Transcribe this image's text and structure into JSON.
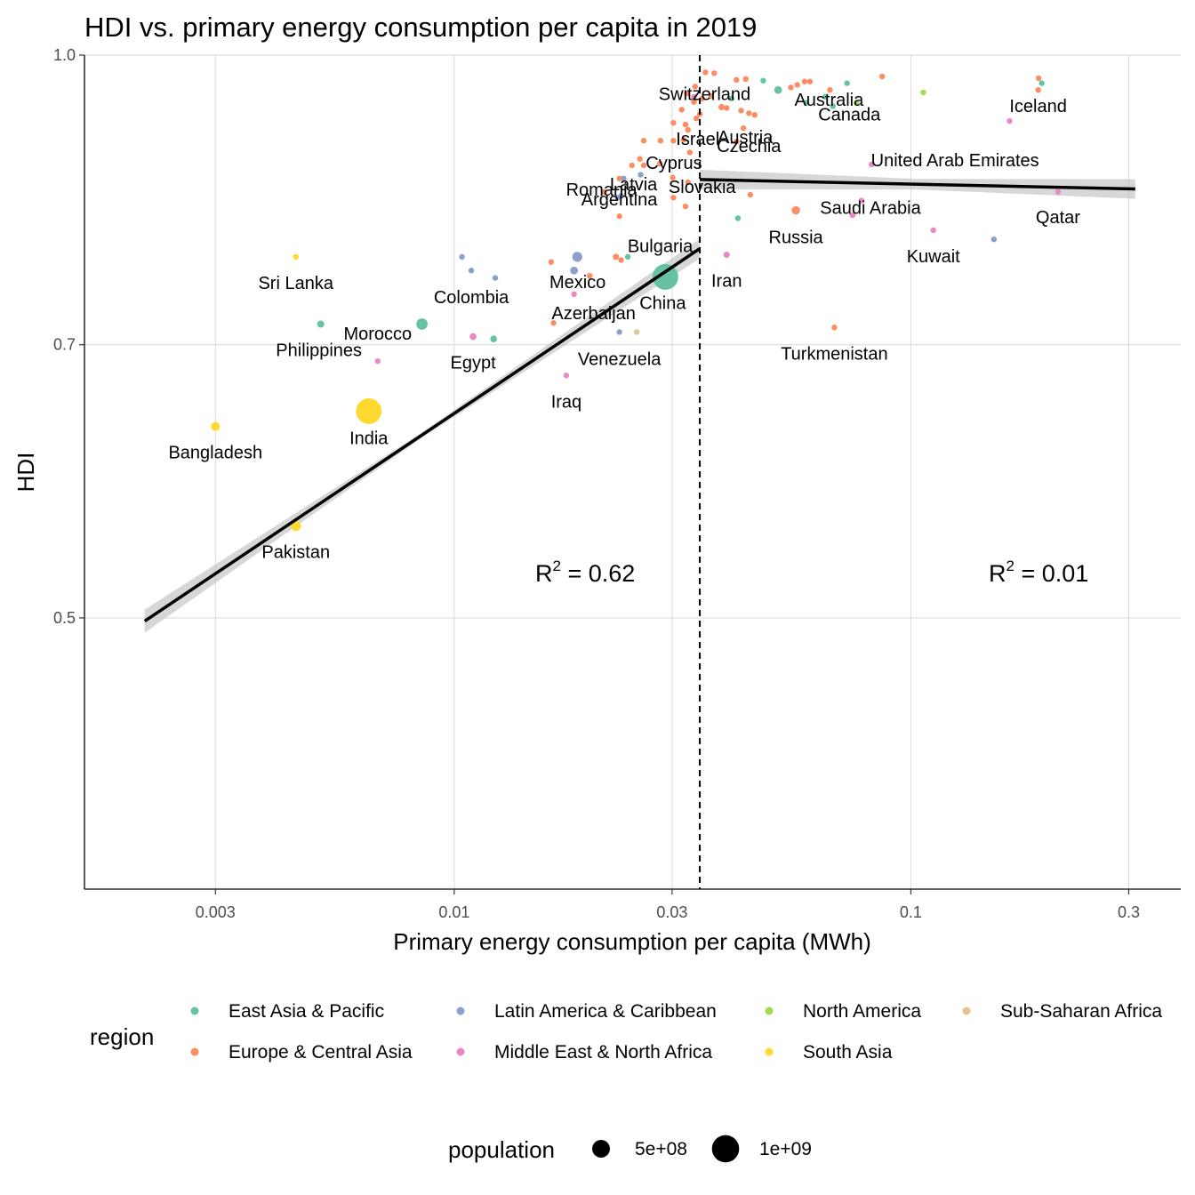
{
  "chart_data": {
    "type": "scatter",
    "title": "HDI vs. primary energy consumption per capita in 2019",
    "xlabel": "Primary energy consumption per capita (MWh)",
    "ylabel": "HDI",
    "x_scale": "log10",
    "y_scale": "log10",
    "xlim": [
      0.00155,
      0.39
    ],
    "ylim": [
      0.358,
      1.0
    ],
    "x_ticks": [
      0.003,
      0.01,
      0.03,
      0.1,
      0.3
    ],
    "x_tick_labels": [
      "0.003",
      "0.01",
      "0.03",
      "0.1",
      "0.3"
    ],
    "y_ticks": [
      0.5,
      0.7,
      1.0
    ],
    "y_tick_labels": [
      "0.5",
      "0.7",
      "1.0"
    ],
    "grid": true,
    "threshold_x": 0.0345,
    "regions": [
      {
        "name": "East Asia & Pacific",
        "color": "#66c2a5"
      },
      {
        "name": "Europe & Central Asia",
        "color": "#fc8d62"
      },
      {
        "name": "Latin America & Caribbean",
        "color": "#8da0cb"
      },
      {
        "name": "Middle East & North Africa",
        "color": "#e78ac3"
      },
      {
        "name": "North America",
        "color": "#a6d854"
      },
      {
        "name": "South Asia",
        "color": "#ffd92f"
      },
      {
        "name": "Sub-Saharan Africa",
        "color": "#e5c494"
      }
    ],
    "legend_region_title": "region",
    "legend_population_title": "population",
    "legend_population": [
      {
        "label": "5e+08",
        "value": 500000000
      },
      {
        "label": "1e+09",
        "value": 1000000000
      }
    ],
    "fits": [
      {
        "x_from": 0.0021,
        "x_to": 0.0345,
        "y_from": 0.498,
        "y_to": 0.788,
        "r2_label": "0.62"
      },
      {
        "x_from": 0.0345,
        "x_to": 0.31,
        "y_from": 0.858,
        "y_to": 0.848,
        "r2_label": "0.01"
      }
    ],
    "points": [
      {
        "label": "Bangladesh",
        "x": 0.003,
        "y": 0.633,
        "region": 5,
        "pop": 163000000
      },
      {
        "label": "Pakistan",
        "x": 0.0045,
        "y": 0.56,
        "region": 5,
        "pop": 217000000
      },
      {
        "label": "India",
        "x": 0.0065,
        "y": 0.645,
        "region": 5,
        "pop": 1380000000
      },
      {
        "label": "Sri Lanka",
        "x": 0.0045,
        "y": 0.78,
        "region": 5,
        "pop": 21000000
      },
      {
        "label": "Philippines",
        "x": 0.0051,
        "y": 0.718,
        "region": 0,
        "pop": 108000000
      },
      {
        "label": "Morocco",
        "x": 0.0068,
        "y": 0.686,
        "region": 3,
        "pop": 36000000
      },
      {
        "label": "Egypt",
        "x": 0.011,
        "y": 0.707,
        "region": 3,
        "pop": 100000000
      },
      {
        "label": "Colombia",
        "x": 0.0109,
        "y": 0.767,
        "region": 2,
        "pop": 50000000
      },
      {
        "label": "Mexico",
        "x": 0.0183,
        "y": 0.767,
        "region": 2,
        "pop": 128000000
      },
      {
        "label": "Azerbaijan",
        "x": 0.0183,
        "y": 0.745,
        "region": 3,
        "pop": 10000000
      },
      {
        "label": "Iraq",
        "x": 0.0176,
        "y": 0.674,
        "region": 3,
        "pop": 39000000
      },
      {
        "label": "Venezuela",
        "x": 0.023,
        "y": 0.711,
        "region": 2,
        "pop": 28000000
      },
      {
        "label": "China",
        "x": 0.029,
        "y": 0.761,
        "region": 0,
        "pop": 1400000000
      },
      {
        "label": "Bulgaria",
        "x": 0.0232,
        "y": 0.777,
        "region": 1,
        "pop": 7000000
      },
      {
        "label": "Romania",
        "x": 0.023,
        "y": 0.82,
        "region": 1,
        "pop": 19000000
      },
      {
        "label": "Argentina",
        "x": 0.0232,
        "y": 0.841,
        "region": 2,
        "pop": 45000000
      },
      {
        "label": "Latvia",
        "x": 0.023,
        "y": 0.859,
        "region": 1,
        "pop": 2000000
      },
      {
        "label": "Cyprus",
        "x": 0.026,
        "y": 0.873,
        "region": 1,
        "pop": 1000000
      },
      {
        "label": "Slovakia",
        "x": 0.0325,
        "y": 0.855,
        "region": 1,
        "pop": 5000000
      },
      {
        "label": "Israel",
        "x": 0.0325,
        "y": 0.912,
        "region": 1,
        "pop": 9000000
      },
      {
        "label": "Switzerland",
        "x": 0.0335,
        "y": 0.944,
        "region": 1,
        "pop": 8600000
      },
      {
        "label": "Austria",
        "x": 0.043,
        "y": 0.914,
        "region": 1,
        "pop": 9000000
      },
      {
        "label": "Czechia",
        "x": 0.0415,
        "y": 0.899,
        "region": 1,
        "pop": 10700000
      },
      {
        "label": "Australia",
        "x": 0.065,
        "y": 0.95,
        "region": 0,
        "pop": 25000000
      },
      {
        "label": "Canada",
        "x": 0.076,
        "y": 0.943,
        "region": 4,
        "pop": 38000000
      },
      {
        "label": "Iceland",
        "x": 0.19,
        "y": 0.958,
        "region": 1,
        "pop": 360000
      },
      {
        "label": "United Arab Emirates",
        "x": 0.082,
        "y": 0.874,
        "region": 3,
        "pop": 9800000
      },
      {
        "label": "Saudi Arabia",
        "x": 0.078,
        "y": 0.836,
        "region": 3,
        "pop": 35000000
      },
      {
        "label": "Qatar",
        "x": 0.21,
        "y": 0.845,
        "region": 3,
        "pop": 2800000
      },
      {
        "label": "Russia",
        "x": 0.056,
        "y": 0.826,
        "region": 1,
        "pop": 145000000
      },
      {
        "label": "Kuwait",
        "x": 0.112,
        "y": 0.806,
        "region": 3,
        "pop": 4300000
      },
      {
        "label": "Iran",
        "x": 0.0395,
        "y": 0.782,
        "region": 3,
        "pop": 84000000
      },
      {
        "label": "Turkmenistan",
        "x": 0.068,
        "y": 0.715,
        "region": 1,
        "pop": 6000000
      },
      {
        "label": "",
        "x": 0.0104,
        "y": 0.78,
        "region": 2,
        "pop": 33000000
      },
      {
        "label": "",
        "x": 0.0123,
        "y": 0.76,
        "region": 2,
        "pop": 17000000
      },
      {
        "label": "",
        "x": 0.0085,
        "y": 0.718,
        "region": 0,
        "pop": 270000000
      },
      {
        "label": "",
        "x": 0.0122,
        "y": 0.705,
        "region": 0,
        "pop": 97000000
      },
      {
        "label": "",
        "x": 0.0165,
        "y": 0.719,
        "region": 1,
        "pop": 44000000
      },
      {
        "label": "",
        "x": 0.0186,
        "y": 0.78,
        "region": 2,
        "pop": 211000000
      },
      {
        "label": "",
        "x": 0.0163,
        "y": 0.775,
        "region": 1,
        "pop": 9000000
      },
      {
        "label": "",
        "x": 0.024,
        "y": 0.78,
        "region": 0,
        "pop": 67000000
      },
      {
        "label": "",
        "x": 0.0226,
        "y": 0.78,
        "region": 1,
        "pop": 84000000
      },
      {
        "label": "",
        "x": 0.0198,
        "y": 0.762,
        "region": 1,
        "pop": 4000000
      },
      {
        "label": "",
        "x": 0.0251,
        "y": 0.711,
        "region": 6,
        "pop": 59000000
      },
      {
        "label": "",
        "x": 0.0228,
        "y": 0.839,
        "region": 2,
        "pop": 5000000
      },
      {
        "label": "",
        "x": 0.0235,
        "y": 0.859,
        "region": 2,
        "pop": 18000000
      },
      {
        "label": "",
        "x": 0.0213,
        "y": 0.845,
        "region": 1,
        "pop": 9000000
      },
      {
        "label": "",
        "x": 0.0255,
        "y": 0.88,
        "region": 1,
        "pop": 4000000
      },
      {
        "label": "",
        "x": 0.0245,
        "y": 0.873,
        "region": 1,
        "pop": 3000000
      },
      {
        "label": "",
        "x": 0.0256,
        "y": 0.863,
        "region": 2,
        "pop": 4000000
      },
      {
        "label": "",
        "x": 0.026,
        "y": 0.9,
        "region": 1,
        "pop": 2000000
      },
      {
        "label": "",
        "x": 0.0282,
        "y": 0.875,
        "region": 1,
        "pop": 10000000
      },
      {
        "label": "",
        "x": 0.0302,
        "y": 0.9,
        "region": 1,
        "pop": 10000000
      },
      {
        "label": "",
        "x": 0.0318,
        "y": 0.901,
        "region": 1,
        "pop": 10500000
      },
      {
        "label": "",
        "x": 0.0328,
        "y": 0.887,
        "region": 1,
        "pop": 2000000
      },
      {
        "label": "",
        "x": 0.0283,
        "y": 0.9,
        "region": 1,
        "pop": 4000000
      },
      {
        "label": "",
        "x": 0.0301,
        "y": 0.86,
        "region": 1,
        "pop": 4000000
      },
      {
        "label": "",
        "x": 0.0302,
        "y": 0.839,
        "region": 1,
        "pop": 4000000
      },
      {
        "label": "",
        "x": 0.0321,
        "y": 0.83,
        "region": 1,
        "pop": 2000000
      },
      {
        "label": "",
        "x": 0.0339,
        "y": 0.925,
        "region": 1,
        "pop": 2000000
      },
      {
        "label": "",
        "x": 0.0321,
        "y": 0.918,
        "region": 1,
        "pop": 2000000
      },
      {
        "label": "",
        "x": 0.0302,
        "y": 0.92,
        "region": 1,
        "pop": 60000000
      },
      {
        "label": "",
        "x": 0.0315,
        "y": 0.935,
        "region": 1,
        "pop": 38000000
      },
      {
        "label": "",
        "x": 0.0323,
        "y": 0.954,
        "region": 1,
        "pop": 2000000
      },
      {
        "label": "",
        "x": 0.0337,
        "y": 0.962,
        "region": 1,
        "pop": 2000000
      },
      {
        "label": "",
        "x": 0.0355,
        "y": 0.979,
        "region": 1,
        "pop": 5000000
      },
      {
        "label": "",
        "x": 0.0371,
        "y": 0.978,
        "region": 1,
        "pop": 5000000
      },
      {
        "label": "",
        "x": 0.0349,
        "y": 0.948,
        "region": 1,
        "pop": 5000000
      },
      {
        "label": "",
        "x": 0.0335,
        "y": 0.95,
        "region": 3,
        "pop": 5000000
      },
      {
        "label": "",
        "x": 0.0345,
        "y": 0.93,
        "region": 1,
        "pop": 9000000
      },
      {
        "label": "",
        "x": 0.0405,
        "y": 0.948,
        "region": 0,
        "pop": 51000000
      },
      {
        "label": "",
        "x": 0.0365,
        "y": 0.951,
        "region": 1,
        "pop": 1000000
      },
      {
        "label": "",
        "x": 0.0395,
        "y": 0.937,
        "region": 1,
        "pop": 2000000
      },
      {
        "label": "",
        "x": 0.0442,
        "y": 0.931,
        "region": 1,
        "pop": 67000000
      },
      {
        "label": "",
        "x": 0.0385,
        "y": 0.938,
        "region": 1,
        "pop": 83000000
      },
      {
        "label": "",
        "x": 0.0425,
        "y": 0.934,
        "region": 1,
        "pop": 2000000
      },
      {
        "label": "",
        "x": 0.0455,
        "y": 0.929,
        "region": 1,
        "pop": 1000000
      },
      {
        "label": "",
        "x": 0.0435,
        "y": 0.971,
        "region": 1,
        "pop": 67000000
      },
      {
        "label": "",
        "x": 0.0415,
        "y": 0.97,
        "region": 1,
        "pop": 1000000
      },
      {
        "label": "",
        "x": 0.0475,
        "y": 0.969,
        "region": 0,
        "pop": 5000000
      },
      {
        "label": "",
        "x": 0.0512,
        "y": 0.958,
        "region": 0,
        "pop": 126000000
      },
      {
        "label": "",
        "x": 0.0564,
        "y": 0.964,
        "region": 1,
        "pop": 10000000
      },
      {
        "label": "",
        "x": 0.0585,
        "y": 0.968,
        "region": 1,
        "pop": 17000000
      },
      {
        "label": "",
        "x": 0.0601,
        "y": 0.968,
        "region": 1,
        "pop": 5000000
      },
      {
        "label": "",
        "x": 0.0546,
        "y": 0.961,
        "region": 1,
        "pop": 11000000
      },
      {
        "label": "",
        "x": 0.0725,
        "y": 0.966,
        "region": 0,
        "pop": 5000000
      },
      {
        "label": "",
        "x": 0.0665,
        "y": 0.958,
        "region": 1,
        "pop": 5500000
      },
      {
        "label": "",
        "x": 0.0865,
        "y": 0.974,
        "region": 1,
        "pop": 5000000
      },
      {
        "label": "",
        "x": 0.0675,
        "y": 0.939,
        "region": 0,
        "pop": 5000000
      },
      {
        "label": "",
        "x": 0.059,
        "y": 0.943,
        "region": 0,
        "pop": 5000000
      },
      {
        "label": "",
        "x": 0.1065,
        "y": 0.955,
        "region": 4,
        "pop": 5000000
      },
      {
        "label": "",
        "x": 0.1645,
        "y": 0.922,
        "region": 3,
        "pop": 1600000
      },
      {
        "label": "",
        "x": 0.1935,
        "y": 0.966,
        "region": 0,
        "pop": 5000000
      },
      {
        "label": "",
        "x": 0.1905,
        "y": 0.972,
        "region": 1,
        "pop": 360000
      },
      {
        "label": "",
        "x": 0.152,
        "y": 0.797,
        "region": 2,
        "pop": 1400000
      },
      {
        "label": "",
        "x": 0.0745,
        "y": 0.821,
        "region": 3,
        "pop": 4000000
      },
      {
        "label": "",
        "x": 0.0445,
        "y": 0.842,
        "region": 1,
        "pop": 19000000
      },
      {
        "label": "",
        "x": 0.0418,
        "y": 0.818,
        "region": 0,
        "pop": 32000000
      }
    ]
  }
}
